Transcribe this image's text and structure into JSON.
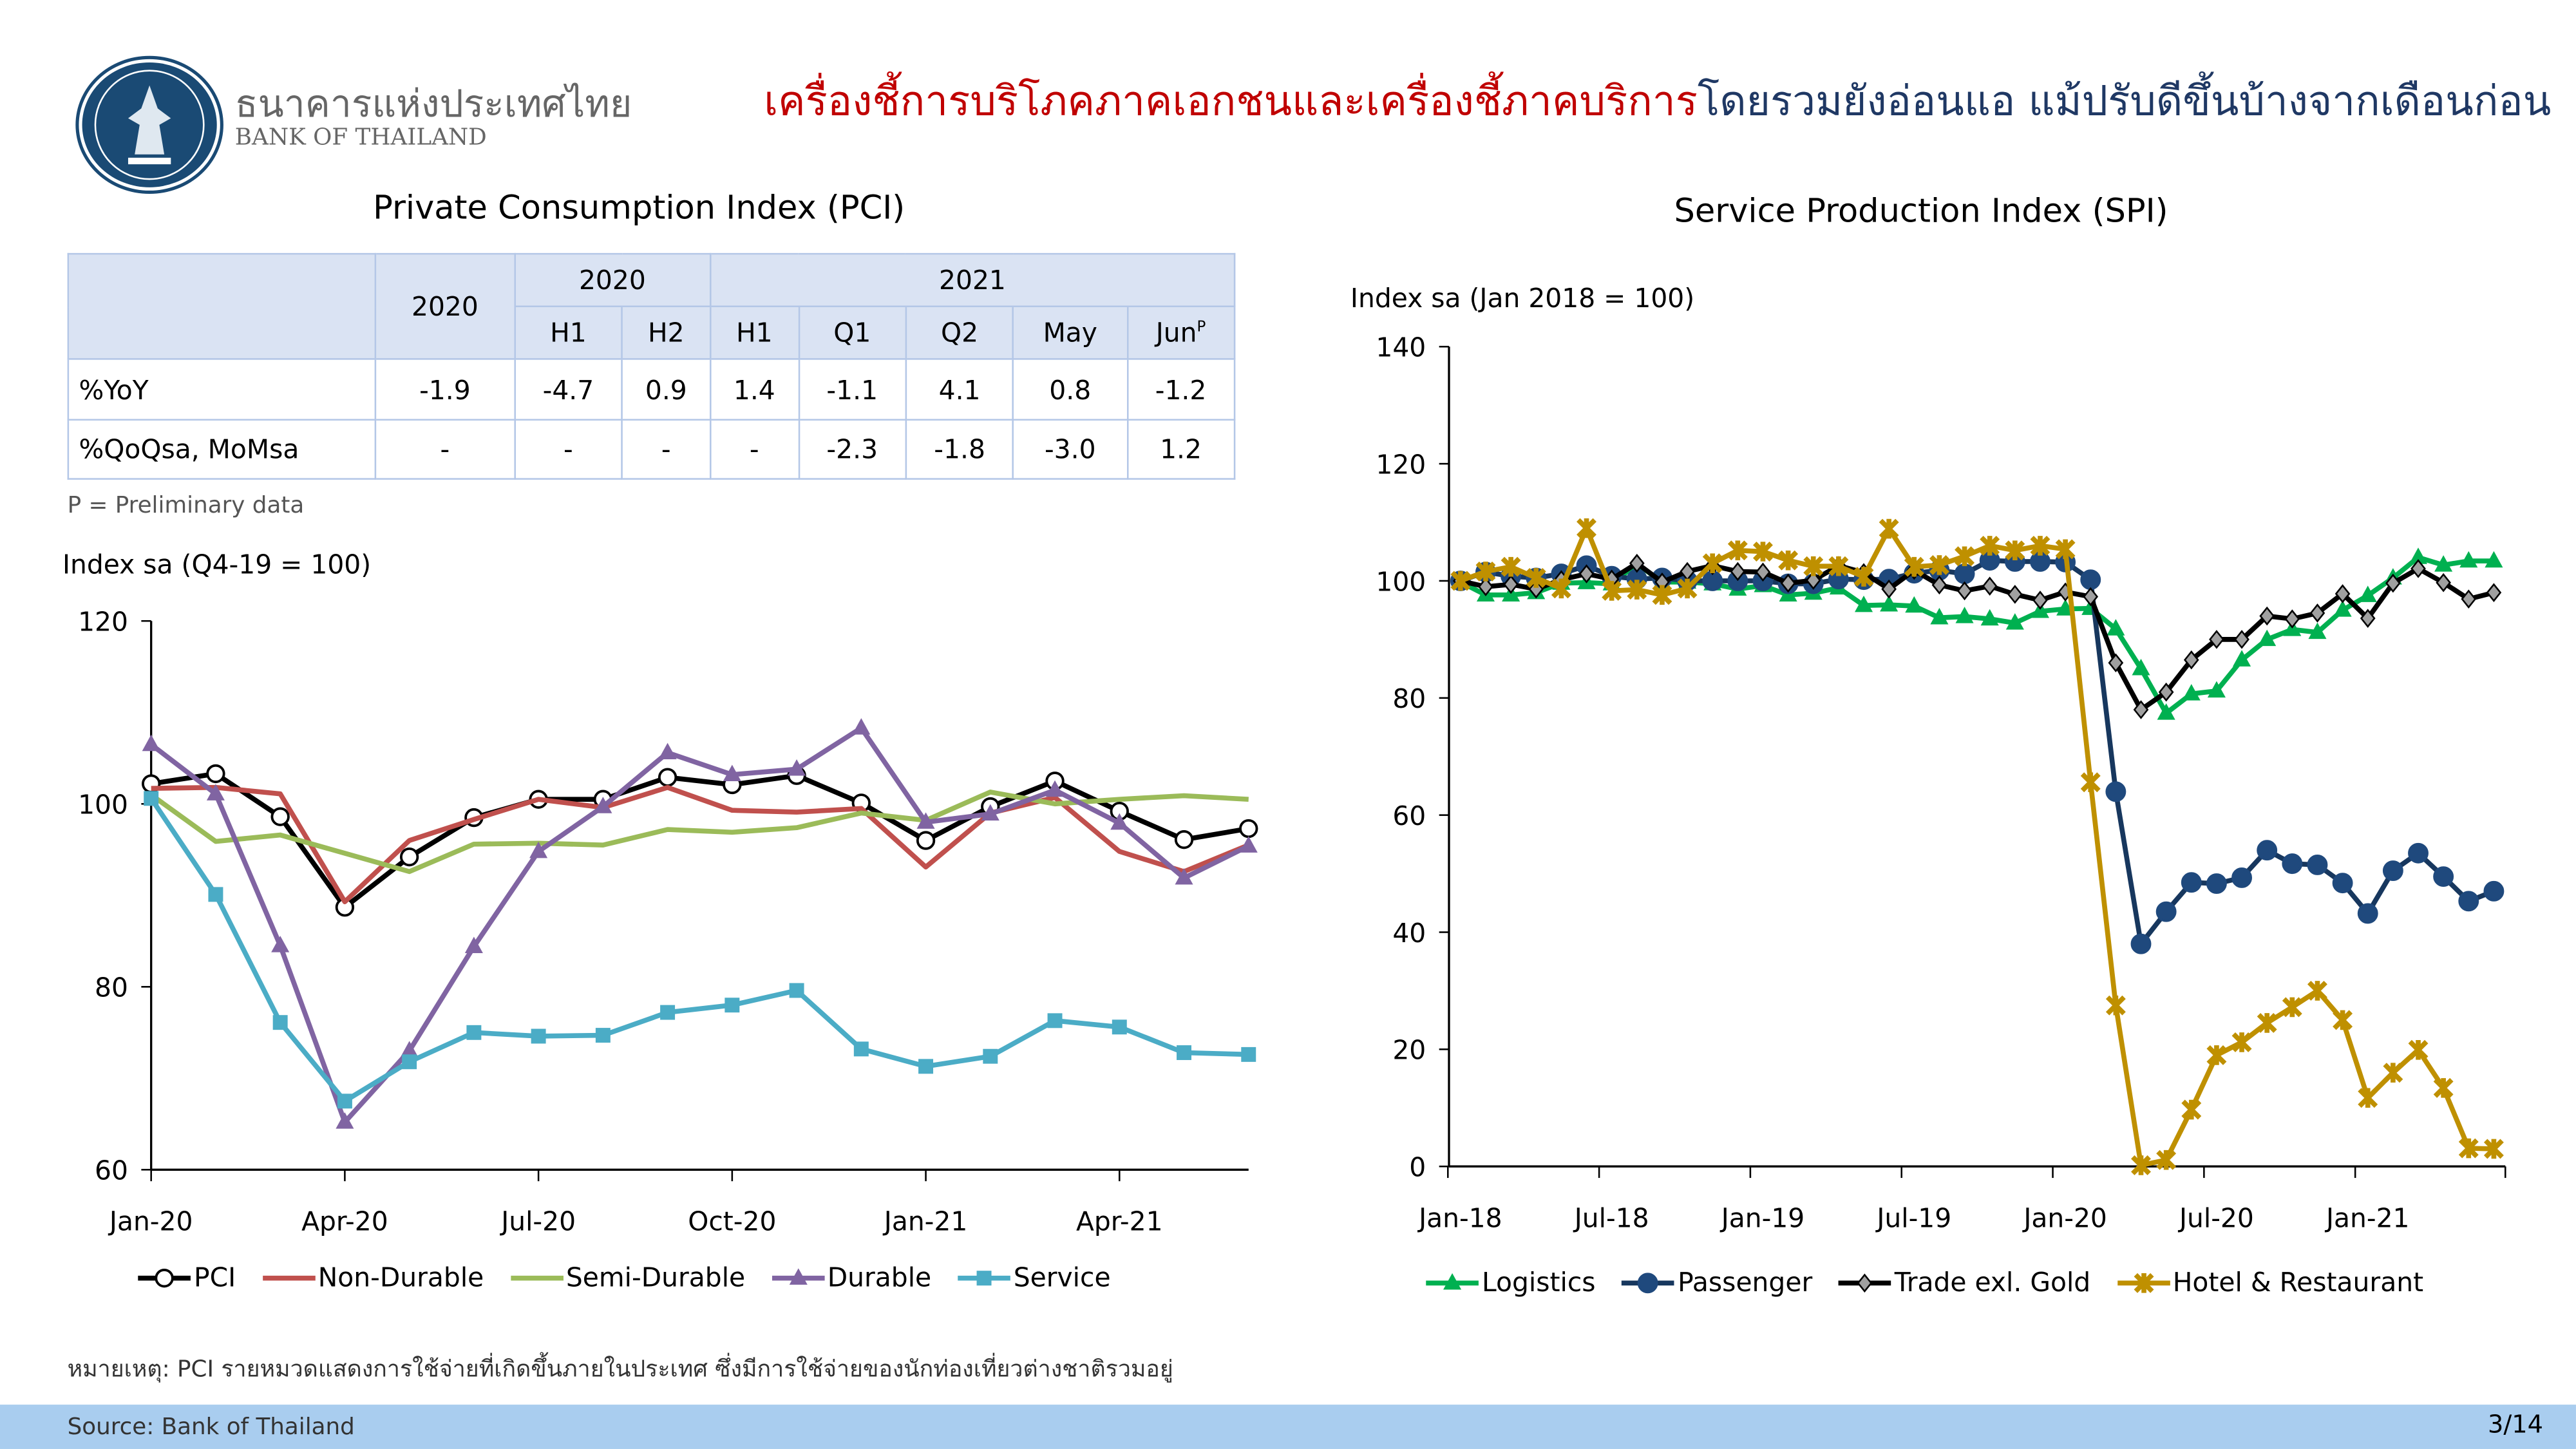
{
  "logo": {
    "thai": "ธนาคารแห่งประเทศไทย",
    "english": "BANK OF THAILAND"
  },
  "title": {
    "red_part": "เครื่องชี้การบริโภคภาคเอกชนและเครื่องชี้ภาคบริการ",
    "blue_part": "โดยรวมยังอ่อนแอ แม้ปรับดีขึ้นบ้างจากเดือนก่อน"
  },
  "colors": {
    "title_red": "#c00000",
    "title_blue": "#1f3864",
    "footer": "#a9cdef"
  },
  "pci_table": {
    "title": "Private Consumption Index (PCI)",
    "header_years": [
      "2020",
      "2020",
      "2021"
    ],
    "header_periods": [
      "H1",
      "H2",
      "H1",
      "Q1",
      "Q2",
      "May",
      "Jun"
    ],
    "jun_sup": "P",
    "rows": [
      {
        "label": "%YoY",
        "values": [
          "-1.9",
          "-4.7",
          "0.9",
          "1.4",
          "-1.1",
          "4.1",
          "0.8",
          "-1.2"
        ]
      },
      {
        "label": "%QoQsa, MoMsa",
        "values": [
          "-",
          "-",
          "-",
          "-",
          "-2.3",
          "-1.8",
          "-3.0",
          "1.2"
        ]
      }
    ],
    "footnote": "P = Preliminary data"
  },
  "note": "หมายเหตุ: PCI รายหมวดแสดงการใช้จ่ายที่เกิดขึ้นภายในประเทศ ซึ่งมีการใช้จ่ายของนักท่องเที่ยวต่างชาติรวมอยู่",
  "footer": {
    "source": "Source: Bank of Thailand",
    "page": "3/14"
  },
  "chart_data": [
    {
      "type": "line",
      "title": "Private Consumption Index (PCI)",
      "ylabel": "Index sa (Q4-19 = 100)",
      "ylim": [
        60,
        120
      ],
      "yticks": [
        60,
        80,
        100,
        120
      ],
      "x": [
        "Jan-20",
        "Feb-20",
        "Mar-20",
        "Apr-20",
        "May-20",
        "Jun-20",
        "Jul-20",
        "Aug-20",
        "Sep-20",
        "Oct-20",
        "Nov-20",
        "Dec-20",
        "Jan-21",
        "Feb-21",
        "Mar-21",
        "Apr-21",
        "May-21",
        "Jun-21"
      ],
      "xtick_labels": [
        "Jan-20",
        "Apr-20",
        "Jul-20",
        "Oct-20",
        "Jan-21",
        "Apr-21"
      ],
      "series": [
        {
          "name": "PCI",
          "color": "#000000",
          "marker": "circle",
          "values": [
            102.2,
            103.3,
            98.6,
            88.7,
            94.2,
            98.5,
            100.5,
            100.5,
            102.9,
            102.1,
            103.1,
            100.1,
            96.0,
            99.7,
            102.5,
            99.2,
            96.1,
            97.3
          ]
        },
        {
          "name": "Non-Durable",
          "color": "#c0504d",
          "marker": "none",
          "values": [
            101.7,
            101.8,
            101.1,
            89.3,
            96.0,
            98.3,
            100.5,
            99.6,
            101.8,
            99.3,
            99.1,
            99.5,
            93.1,
            99.0,
            100.7,
            94.8,
            92.6,
            95.5
          ]
        },
        {
          "name": "Semi-Durable",
          "color": "#9bbb59",
          "marker": "none",
          "values": [
            101.0,
            95.9,
            96.6,
            94.6,
            92.6,
            95.6,
            95.7,
            95.5,
            97.2,
            96.9,
            97.4,
            99.0,
            98.2,
            101.3,
            100.0,
            100.5,
            100.9,
            100.5
          ]
        },
        {
          "name": "Durable",
          "color": "#8064a2",
          "marker": "triangle",
          "values": [
            106.5,
            101.1,
            84.5,
            65.2,
            73.0,
            84.4,
            94.8,
            99.7,
            105.6,
            103.2,
            103.8,
            108.3,
            98.0,
            98.9,
            101.5,
            97.9,
            91.9,
            95.4
          ]
        },
        {
          "name": "Service",
          "color": "#4bacc6",
          "marker": "square",
          "values": [
            100.6,
            90.1,
            76.1,
            67.5,
            71.8,
            75.0,
            74.6,
            74.7,
            77.2,
            78.0,
            79.6,
            73.2,
            71.3,
            72.4,
            76.3,
            75.6,
            72.8,
            72.6
          ]
        }
      ]
    },
    {
      "type": "line",
      "title": "Service Production Index (SPI)",
      "ylabel": "Index sa (Jan 2018 = 100)",
      "ylim": [
        0,
        140
      ],
      "yticks": [
        0,
        20,
        40,
        60,
        80,
        100,
        120,
        140
      ],
      "x_start": "Jan-18",
      "x_end": "Jun-21",
      "xtick_labels": [
        "Jan-18",
        "Jul-18",
        "Jan-19",
        "Jul-19",
        "Jan-20",
        "Jul-20",
        "Jan-21"
      ],
      "series": [
        {
          "name": "Logistics",
          "color": "#00b050",
          "marker": "triangle",
          "values": [
            99.8,
            97.6,
            97.6,
            98,
            99.6,
            99.7,
            99.5,
            102.9,
            99.8,
            99.8,
            99.5,
            98.6,
            99.2,
            97.6,
            97.9,
            98.8,
            95.8,
            95.9,
            95.7,
            93.7,
            93.9,
            93.5,
            92.8,
            94.8,
            95.2,
            95.3,
            91.8,
            85,
            77.4,
            80.7,
            81.2,
            86.5,
            90,
            91.7,
            91.2,
            95,
            97.5,
            100.5,
            104,
            102.7,
            103.4,
            103.4
          ]
        },
        {
          "name": "Passenger",
          "color": "#1f497d",
          "marker": "circle",
          "values": [
            100,
            101.5,
            100.8,
            100.5,
            101.2,
            102.6,
            100.8,
            100.3,
            100.5,
            100,
            100,
            100,
            100,
            99.5,
            99.5,
            100.3,
            100.2,
            100.3,
            101.3,
            101.8,
            101.2,
            103.5,
            103.3,
            103.3,
            103.2,
            100.2,
            64,
            38,
            43.5,
            48.5,
            48.3,
            49.3,
            54,
            51.7,
            51.5,
            48.4,
            43.2,
            50.5,
            53.5,
            49.5,
            45.3,
            47
          ]
        },
        {
          "name": "Trade  exl. Gold",
          "color": "#000000",
          "marker": "diamond",
          "values": [
            100,
            99,
            99.4,
            98.6,
            100.2,
            101.2,
            100.3,
            103,
            99.8,
            101.6,
            102.6,
            101.6,
            101.5,
            99.6,
            100.1,
            102.6,
            101.4,
            98.6,
            101.8,
            99.3,
            98.3,
            99.1,
            97.7,
            96.7,
            98.1,
            97.3,
            86,
            78,
            81,
            86.5,
            90,
            90,
            94,
            93.5,
            94.5,
            97.8,
            93.6,
            99.6,
            102.1,
            99.7,
            96.9,
            98
          ]
        },
        {
          "name": "Hotel & Restaurant",
          "color": "#bf9000",
          "marker": "star",
          "values": [
            100,
            101.6,
            102.4,
            100.5,
            98.7,
            109,
            98.3,
            98.5,
            97.6,
            98.7,
            103,
            105.2,
            105,
            103.5,
            102.5,
            102.5,
            100.7,
            108.9,
            102.4,
            102.7,
            104.2,
            106,
            105.2,
            106,
            105.4,
            65.6,
            27.5,
            0.2,
            1.1,
            9.7,
            19,
            21.2,
            24.5,
            27.2,
            30,
            25,
            11.7,
            16,
            19.9,
            13.4,
            3.1,
            3
          ]
        }
      ]
    }
  ]
}
